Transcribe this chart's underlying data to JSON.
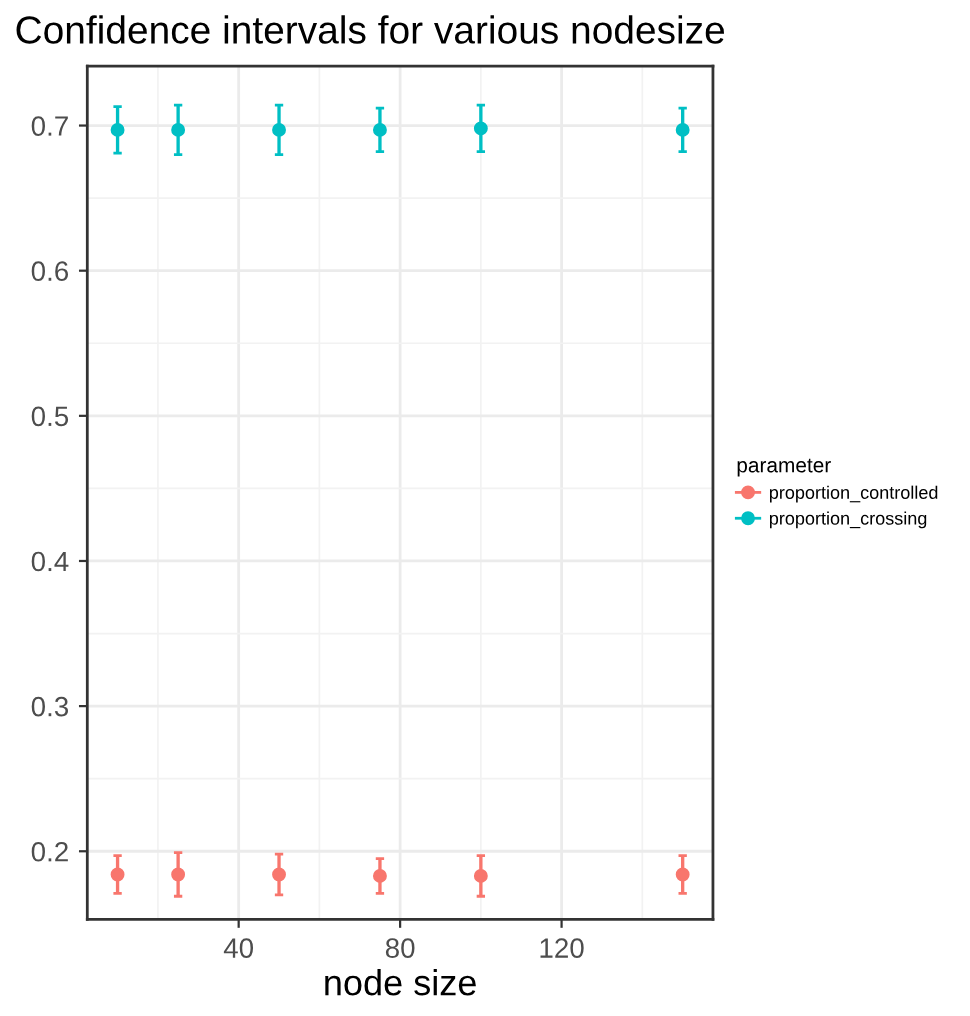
{
  "chart_data": {
    "type": "scatter",
    "title": "Confidence intervals for various nodesize",
    "xlabel": "node size",
    "legend_title": "parameter",
    "x": [
      10,
      25,
      50,
      75,
      100,
      150
    ],
    "series": [
      {
        "name": "proportion_controlled",
        "color": "#f8766d",
        "values": [
          0.184,
          0.184,
          0.184,
          0.183,
          0.183,
          0.184
        ],
        "errors": [
          0.013,
          0.015,
          0.014,
          0.012,
          0.014,
          0.013
        ]
      },
      {
        "name": "proportion_crossing",
        "color": "#00bfc4",
        "values": [
          0.697,
          0.697,
          0.697,
          0.697,
          0.698,
          0.697
        ],
        "errors": [
          0.016,
          0.017,
          0.017,
          0.015,
          0.016,
          0.015
        ]
      }
    ],
    "xlim": [
      2.5,
      157.5
    ],
    "xticks": [
      40,
      80,
      120
    ],
    "ylim": [
      0.153,
      0.741
    ],
    "yticks": [
      0.2,
      0.3,
      0.4,
      0.5,
      0.6,
      0.7
    ],
    "grid": true,
    "legend": "right",
    "marker": "circle"
  }
}
